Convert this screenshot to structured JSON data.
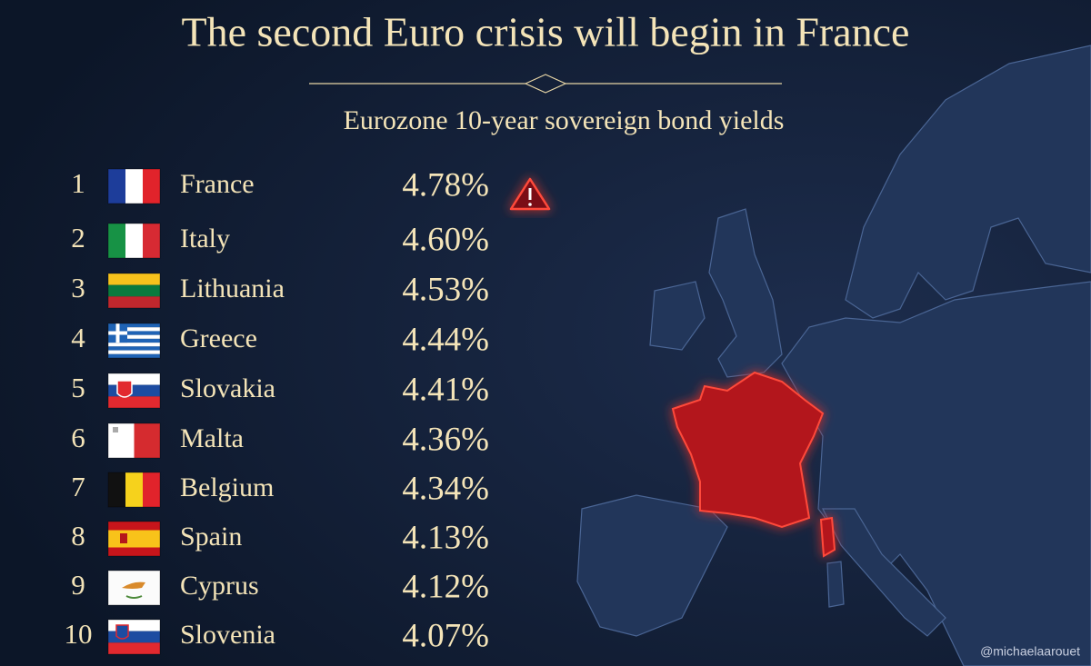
{
  "header": {
    "title": "The second Euro crisis will begin in France",
    "subtitle": "Eurozone 10-year sovereign bond yields"
  },
  "table": {
    "rows": [
      [
        "1",
        "France",
        "4.78%"
      ],
      [
        "2",
        "Italy",
        "4.60%"
      ],
      [
        "3",
        "Lithuania",
        "4.53%"
      ],
      [
        "4",
        "Greece",
        "4.44%"
      ],
      [
        "5",
        "Slovakia",
        "4.41%"
      ],
      [
        "6",
        "Malta",
        "4.36%"
      ],
      [
        "7",
        "Belgium",
        "4.34%"
      ],
      [
        "8",
        "Spain",
        "4.13%"
      ],
      [
        "9",
        "Cyprus",
        "4.12%"
      ],
      [
        "10",
        "Slovenia",
        "4.07%"
      ]
    ]
  },
  "footer": {
    "credit": "@michaelaarouet"
  }
}
